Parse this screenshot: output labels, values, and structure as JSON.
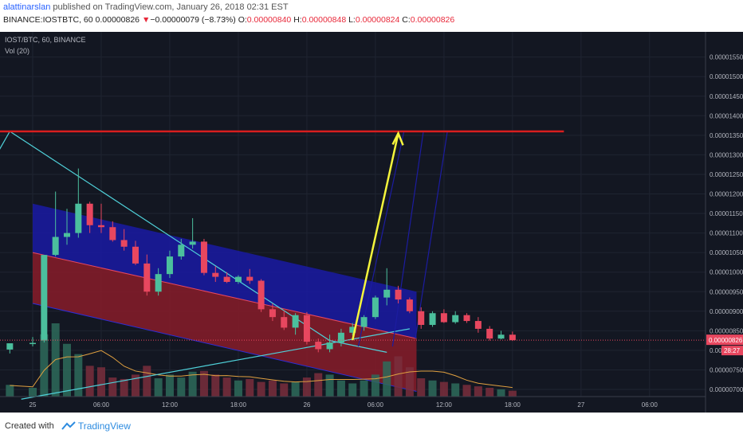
{
  "header": {
    "author": "alattinarslan",
    "published_text": " published on TradingView.com, January 26, 2018 02:31 EST",
    "symbol_label": "BINANCE:IOSTBTC, 60",
    "last_price": "0.00000826",
    "change_arrow": "▼",
    "change_text": "−0.00000079 (−8.73%)",
    "o_label": "O:",
    "o_value": "0.00000840",
    "h_label": "H:",
    "h_value": "0.00000848",
    "l_label": "L:",
    "l_value": "0.00000824",
    "c_label": "C:",
    "c_value": "0.00000826"
  },
  "legend": {
    "pair": "IOST/BTC, 60, BINANCE",
    "volume": "Vol (20)"
  },
  "price_tags": {
    "last": "0.00000826",
    "countdown": "28:27"
  },
  "footer": {
    "created_with": "Created with",
    "brand": "TradingView"
  },
  "colors": {
    "background": "#131722",
    "bull": "#4bbf9d",
    "bear": "#e8475f",
    "resistance": "#d81e1e",
    "trendline": "#4fd1d9",
    "arrow": "#f5f53c",
    "channel_upper": "#1a1aa8",
    "channel_lower": "#8c1c2a"
  },
  "chart_data": {
    "type": "candlestick",
    "title": "IOST/BTC, 60, BINANCE",
    "timeframe": "60",
    "y_unit": "BTC",
    "y_ticks": [
      "0.00000700",
      "0.00000750",
      "0.00000800",
      "0.00000850",
      "0.00000900",
      "0.00000950",
      "0.00001000",
      "0.00001050",
      "0.00001100",
      "0.00001150",
      "0.00001200",
      "0.00001250",
      "0.00001300",
      "0.00001350",
      "0.00001400",
      "0.00001450",
      "0.00001500",
      "0.00001550"
    ],
    "ylim": [
      6.8e-06,
      1.57e-05
    ],
    "x_tick_labels": [
      "25",
      "06:00",
      "12:00",
      "18:00",
      "26",
      "06:00",
      "12:00",
      "18:00",
      "27",
      "06:00"
    ],
    "x_tick_hours": [
      0,
      6,
      12,
      18,
      24,
      30,
      36,
      42,
      48,
      54
    ],
    "candles": [
      {
        "h": -2,
        "o": 8.02,
        "hi": 8.12,
        "lo": 7.92,
        "c": 8.18
      },
      {
        "h": 0,
        "o": 8.18,
        "hi": 8.34,
        "lo": 8.1,
        "c": 8.19
      },
      {
        "h": 1,
        "o": 8.25,
        "hi": 9.35,
        "lo": 8.2,
        "c": 10.44
      },
      {
        "h": 2,
        "o": 10.44,
        "hi": 12.06,
        "lo": 10.4,
        "c": 10.9
      },
      {
        "h": 3,
        "o": 10.9,
        "hi": 11.62,
        "lo": 10.7,
        "c": 11.0
      },
      {
        "h": 4,
        "o": 11.0,
        "hi": 12.65,
        "lo": 10.88,
        "c": 11.75
      },
      {
        "h": 5,
        "o": 11.75,
        "hi": 11.8,
        "lo": 11.0,
        "c": 11.2
      },
      {
        "h": 6,
        "o": 11.2,
        "hi": 11.75,
        "lo": 11.0,
        "c": 11.15
      },
      {
        "h": 7,
        "o": 11.15,
        "hi": 11.3,
        "lo": 10.78,
        "c": 10.82
      },
      {
        "h": 8,
        "o": 10.82,
        "hi": 11.1,
        "lo": 10.55,
        "c": 10.65
      },
      {
        "h": 9,
        "o": 10.65,
        "hi": 10.8,
        "lo": 10.18,
        "c": 10.22
      },
      {
        "h": 10,
        "o": 10.22,
        "hi": 10.45,
        "lo": 9.4,
        "c": 9.5
      },
      {
        "h": 11,
        "o": 9.5,
        "hi": 10.1,
        "lo": 9.4,
        "c": 9.95
      },
      {
        "h": 12,
        "o": 9.95,
        "hi": 10.55,
        "lo": 9.85,
        "c": 10.4
      },
      {
        "h": 13,
        "o": 10.4,
        "hi": 10.85,
        "lo": 10.32,
        "c": 10.7
      },
      {
        "h": 14,
        "o": 10.7,
        "hi": 11.38,
        "lo": 10.6,
        "c": 10.78
      },
      {
        "h": 15,
        "o": 10.78,
        "hi": 10.85,
        "lo": 9.92,
        "c": 9.98
      },
      {
        "h": 16,
        "o": 9.98,
        "hi": 10.15,
        "lo": 9.75,
        "c": 9.88
      },
      {
        "h": 17,
        "o": 9.88,
        "hi": 10.0,
        "lo": 9.72,
        "c": 9.75
      },
      {
        "h": 18,
        "o": 9.75,
        "hi": 9.92,
        "lo": 9.7,
        "c": 9.88
      },
      {
        "h": 19,
        "o": 9.88,
        "hi": 10.08,
        "lo": 9.7,
        "c": 9.78
      },
      {
        "h": 20,
        "o": 9.78,
        "hi": 9.82,
        "lo": 8.98,
        "c": 9.05
      },
      {
        "h": 21,
        "o": 9.05,
        "hi": 9.2,
        "lo": 8.75,
        "c": 8.85
      },
      {
        "h": 22,
        "o": 8.85,
        "hi": 9.02,
        "lo": 8.52,
        "c": 8.58
      },
      {
        "h": 23,
        "o": 8.58,
        "hi": 8.95,
        "lo": 8.4,
        "c": 8.9
      },
      {
        "h": 24,
        "o": 8.9,
        "hi": 8.98,
        "lo": 8.15,
        "c": 8.22
      },
      {
        "h": 25,
        "o": 8.22,
        "hi": 8.3,
        "lo": 7.95,
        "c": 8.03
      },
      {
        "h": 26,
        "o": 8.03,
        "hi": 8.4,
        "lo": 7.95,
        "c": 8.2
      },
      {
        "h": 27,
        "o": 8.2,
        "hi": 8.55,
        "lo": 8.1,
        "c": 8.45
      },
      {
        "h": 28,
        "o": 8.45,
        "hi": 8.7,
        "lo": 8.38,
        "c": 8.6
      },
      {
        "h": 29,
        "o": 8.6,
        "hi": 8.9,
        "lo": 8.5,
        "c": 8.85
      },
      {
        "h": 30,
        "o": 8.85,
        "hi": 9.4,
        "lo": 8.8,
        "c": 9.35
      },
      {
        "h": 31,
        "o": 9.35,
        "hi": 10.1,
        "lo": 9.15,
        "c": 9.55
      },
      {
        "h": 32,
        "o": 9.55,
        "hi": 9.65,
        "lo": 9.2,
        "c": 9.3
      },
      {
        "h": 33,
        "o": 9.3,
        "hi": 9.35,
        "lo": 8.95,
        "c": 9.0
      },
      {
        "h": 34,
        "o": 9.0,
        "hi": 9.1,
        "lo": 8.55,
        "c": 8.65
      },
      {
        "h": 35,
        "o": 8.65,
        "hi": 9.0,
        "lo": 8.6,
        "c": 8.95
      },
      {
        "h": 36,
        "o": 8.95,
        "hi": 9.05,
        "lo": 8.7,
        "c": 8.72
      },
      {
        "h": 37,
        "o": 8.72,
        "hi": 9.0,
        "lo": 8.68,
        "c": 8.9
      },
      {
        "h": 38,
        "o": 8.9,
        "hi": 8.95,
        "lo": 8.7,
        "c": 8.75
      },
      {
        "h": 39,
        "o": 8.75,
        "hi": 8.85,
        "lo": 8.45,
        "c": 8.55
      },
      {
        "h": 40,
        "o": 8.55,
        "hi": 8.62,
        "lo": 8.25,
        "c": 8.3
      },
      {
        "h": 41,
        "o": 8.3,
        "hi": 8.5,
        "lo": 8.28,
        "c": 8.4
      },
      {
        "h": 42,
        "o": 8.4,
        "hi": 8.48,
        "lo": 8.24,
        "c": 8.26
      }
    ],
    "volume": [
      0.16,
      0.12,
      0.85,
      1.0,
      0.72,
      0.58,
      0.42,
      0.4,
      0.26,
      0.24,
      0.3,
      0.42,
      0.25,
      0.3,
      0.26,
      0.34,
      0.35,
      0.3,
      0.26,
      0.22,
      0.24,
      0.2,
      0.22,
      0.18,
      0.2,
      0.26,
      0.32,
      0.3,
      0.22,
      0.18,
      0.22,
      0.3,
      0.48,
      0.55,
      0.4,
      0.25,
      0.22,
      0.2,
      0.18,
      0.16,
      0.14,
      0.12,
      0.1,
      0.08
    ],
    "resistance_level": 1.36e-05,
    "drawings": {
      "trendline_upper": [
        [
          -6,
          11.55
        ],
        [
          -2,
          13.6
        ],
        [
          26,
          8.25
        ],
        [
          31,
          7.95
        ]
      ],
      "trendline_lower": [
        [
          -1,
          6.75
        ],
        [
          33,
          8.55
        ]
      ],
      "target_arrow": {
        "from": [
          28,
          8.26
        ],
        "to": [
          32,
          13.55
        ]
      }
    }
  }
}
